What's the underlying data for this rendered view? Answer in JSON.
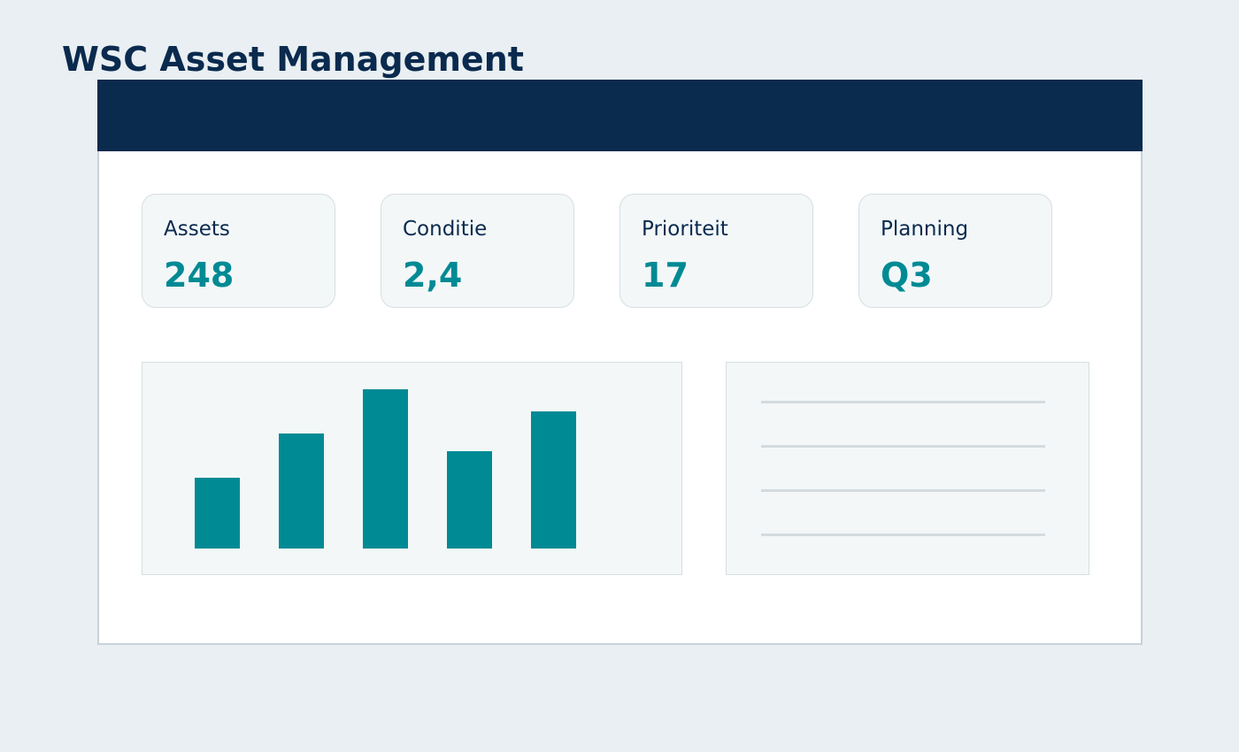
{
  "page": {
    "title": "WSC Asset Management"
  },
  "colors": {
    "background": "#e9eff2",
    "navy": "#0a2a4e",
    "accent": "#008a94",
    "panel": "#f3f7f8",
    "border": "#d6dee2",
    "placeholder_line": "#d3dbdf"
  },
  "kpis": [
    {
      "label": "Assets",
      "value": "248"
    },
    {
      "label": "Conditie",
      "value": "2,4"
    },
    {
      "label": "Prioriteit",
      "value": "17"
    },
    {
      "label": "Planning",
      "value": "Q3"
    }
  ],
  "chart_data": {
    "type": "bar",
    "categories": [
      "",
      "",
      "",
      "",
      ""
    ],
    "values": [
      80,
      130,
      180,
      110,
      155
    ],
    "ylim": [
      0,
      180
    ],
    "grid": false,
    "legend": "none"
  },
  "list_panel": {
    "placeholder_rows": 4
  }
}
